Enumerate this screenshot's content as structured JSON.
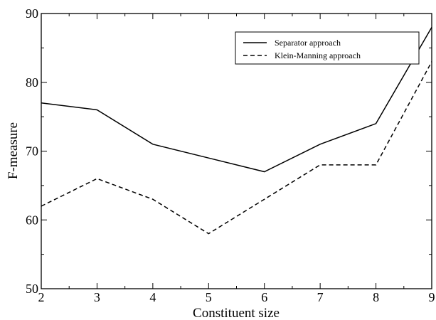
{
  "chart_data": {
    "type": "line",
    "x": [
      2,
      3,
      4,
      5,
      6,
      7,
      8,
      9
    ],
    "series": [
      {
        "name": "Separator approach",
        "values": [
          77,
          76,
          71,
          69,
          67,
          71,
          74,
          88
        ],
        "style": "solid",
        "color": "#000000"
      },
      {
        "name": "Klein-Manning approach",
        "values": [
          62,
          66,
          63,
          58,
          63,
          68,
          68,
          83
        ],
        "style": "dashed",
        "color": "#000000"
      }
    ],
    "title": "",
    "xlabel": "Constituent size",
    "ylabel": "F-measure",
    "xlim": [
      2,
      9
    ],
    "ylim": [
      50,
      90
    ],
    "xticks": [
      2,
      3,
      4,
      5,
      6,
      7,
      8,
      9
    ],
    "yticks": [
      50,
      60,
      70,
      80,
      90
    ],
    "grid": false,
    "legend_position": "top-right"
  }
}
